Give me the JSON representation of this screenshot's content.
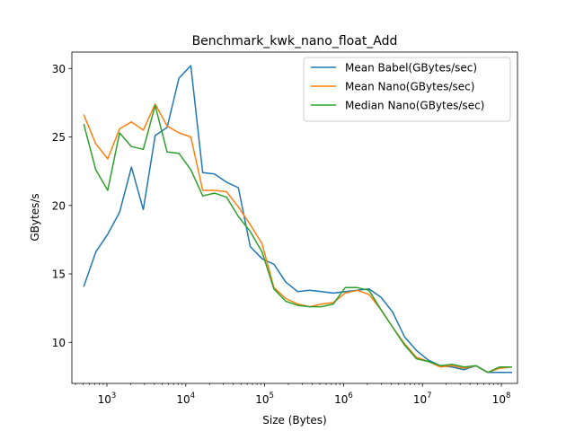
{
  "chart_data": {
    "type": "line",
    "title": "Benchmark_kwk_nano_float_Add",
    "xlabel": "Size (Bytes)",
    "ylabel": "GBytes/s",
    "xscale": "log",
    "xlim": [
      360,
      160000000
    ],
    "ylim": [
      7.0,
      31.2
    ],
    "x_ticks": [
      1000,
      10000,
      100000,
      1000000,
      10000000,
      100000000
    ],
    "x_tick_labels": [
      {
        "base": "10",
        "exp": "3"
      },
      {
        "base": "10",
        "exp": "4"
      },
      {
        "base": "10",
        "exp": "5"
      },
      {
        "base": "10",
        "exp": "6"
      },
      {
        "base": "10",
        "exp": "7"
      },
      {
        "base": "10",
        "exp": "8"
      }
    ],
    "y_ticks": [
      10,
      15,
      20,
      25,
      30
    ],
    "y_tick_labels": [
      "10",
      "15",
      "20",
      "25",
      "30"
    ],
    "grid": false,
    "legend_position": "top-right",
    "x": [
      512,
      724,
      1024,
      1448,
      2048,
      2896,
      4096,
      5792,
      8192,
      11584,
      16384,
      23168,
      32768,
      46336,
      65536,
      92672,
      131072,
      185344,
      262144,
      370688,
      524288,
      741376,
      1048576,
      1482752,
      2097152,
      2965504,
      4194304,
      5931008,
      8388608,
      11862016,
      16777216,
      23724032,
      33554432,
      47448064,
      67108864,
      94896128,
      134217728
    ],
    "series": [
      {
        "name": "Mean Babel(GBytes/sec)",
        "color": "#1f77b4",
        "values": [
          14.1,
          16.6,
          17.9,
          19.5,
          22.8,
          19.7,
          25.1,
          25.7,
          29.3,
          30.2,
          22.4,
          22.3,
          21.7,
          21.3,
          17.0,
          16.1,
          15.7,
          14.4,
          13.7,
          13.8,
          13.7,
          13.6,
          13.7,
          13.8,
          13.9,
          13.3,
          12.2,
          10.4,
          9.4,
          8.7,
          8.3,
          8.2,
          8.0,
          8.3,
          7.8,
          7.8,
          7.8
        ]
      },
      {
        "name": "Mean Nano(GBytes/sec)",
        "color": "#ff7f0e",
        "values": [
          26.6,
          24.5,
          23.4,
          25.6,
          26.1,
          25.5,
          27.4,
          25.8,
          25.3,
          25.0,
          21.1,
          21.1,
          21.0,
          19.9,
          18.6,
          17.2,
          14.0,
          13.2,
          12.8,
          12.6,
          12.8,
          12.9,
          13.6,
          13.8,
          13.5,
          12.4,
          11.1,
          9.9,
          8.9,
          8.6,
          8.2,
          8.3,
          8.1,
          8.3,
          7.8,
          8.1,
          8.2
        ]
      },
      {
        "name": "Median Nano(GBytes/sec)",
        "color": "#2ca02c",
        "values": [
          25.9,
          22.6,
          21.1,
          25.3,
          24.3,
          24.1,
          27.3,
          23.9,
          23.8,
          22.6,
          20.7,
          20.9,
          20.6,
          19.2,
          18.1,
          16.6,
          13.9,
          13.0,
          12.7,
          12.6,
          12.6,
          12.8,
          14.0,
          14.0,
          13.8,
          12.4,
          11.1,
          9.8,
          8.8,
          8.6,
          8.3,
          8.4,
          8.2,
          8.3,
          7.8,
          8.2,
          8.2
        ]
      }
    ]
  }
}
